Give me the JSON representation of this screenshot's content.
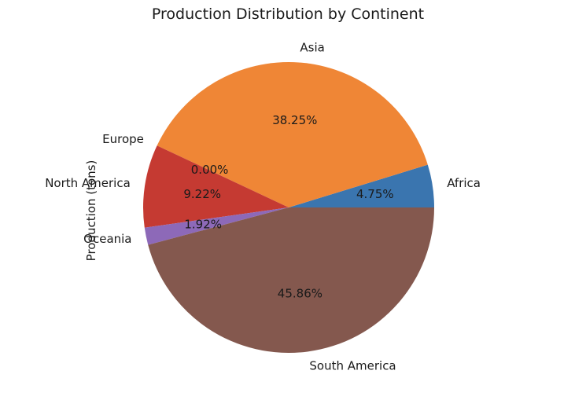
{
  "chart_data": {
    "type": "pie",
    "title": "Production Distribution by Continent",
    "ylabel": "Production (tons)",
    "categories": [
      "Africa",
      "Asia",
      "Europe",
      "North America",
      "Oceania",
      "South America"
    ],
    "values": [
      4.75,
      38.25,
      0.0,
      9.22,
      1.92,
      45.86
    ],
    "value_labels": [
      "4.75%",
      "38.25%",
      "0.00%",
      "9.22%",
      "1.92%",
      "45.86%"
    ],
    "colors": [
      "#3a75af",
      "#ef8636",
      "#519e3e",
      "#c53a32",
      "#8d69b8",
      "#84584e"
    ],
    "start_angle": 0,
    "direction": "counterclockwise",
    "legend": "none"
  }
}
